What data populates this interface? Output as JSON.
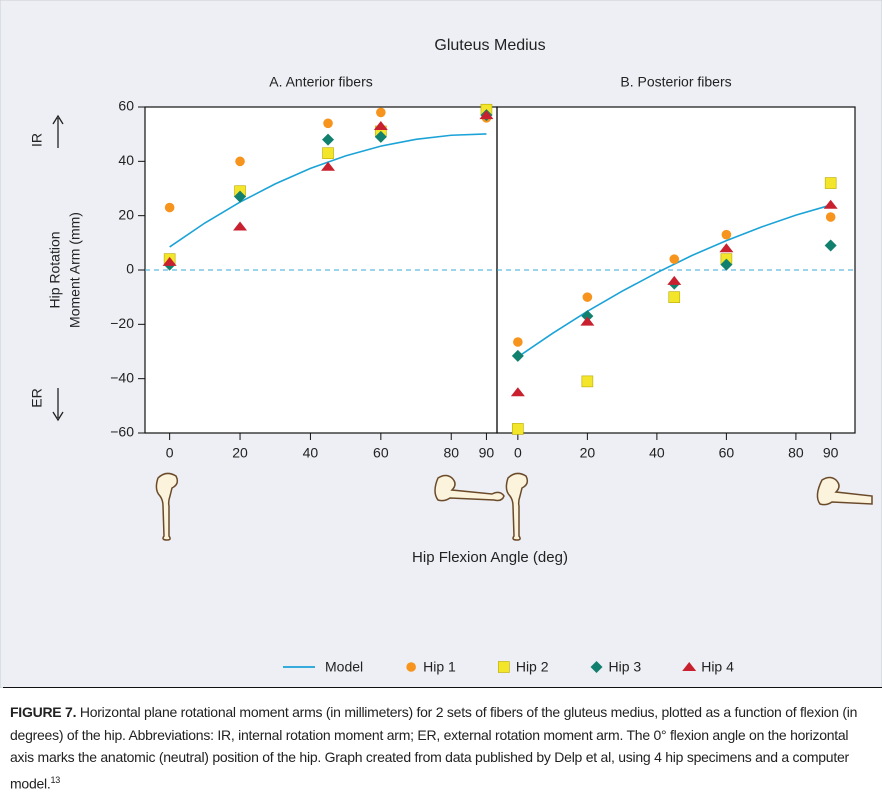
{
  "figure": {
    "title": "Gluteus Medius",
    "x_label": "Hip Flexion Angle (deg)",
    "y_label": [
      "Hip Rotation",
      "Moment Arm (mm)"
    ],
    "ir_label": "IR",
    "er_label": "ER",
    "caption": {
      "label": "FIGURE 7.",
      "text": "Horizontal plane rotational moment arms (in millimeters) for 2 sets of fibers of the gluteus medius, plotted as a function of flexion (in degrees) of the hip. Abbreviations: IR, internal rotation moment arm; ER, external rotation moment arm. The 0° flexion angle on the horizontal axis marks the anatomic (neutral) position of the hip. Graph created from data published by Delp et al, using 4 hip specimens and a computer model.",
      "ref": "13"
    }
  },
  "chart_data": [
    {
      "type": "scatter",
      "title": "A. Anterior fibers",
      "xlim": [
        -7,
        93
      ],
      "ylim": [
        -60,
        60
      ],
      "xticks": [
        0,
        20,
        40,
        60,
        80,
        90
      ],
      "yticks": [
        {
          "value": -60,
          "label": "−60"
        },
        {
          "value": -40,
          "label": "−40"
        },
        {
          "value": -20,
          "label": "−20"
        },
        0,
        20,
        40,
        60
      ],
      "zero_line": true,
      "series": [
        {
          "name": "Model",
          "color": "#1ba3d8",
          "marker": "line",
          "x": [
            0,
            10,
            20,
            30,
            40,
            50,
            60,
            70,
            80,
            90
          ],
          "values": [
            8.5,
            17.3,
            25,
            31.7,
            37.4,
            42,
            45.6,
            48.1,
            49.6,
            50.1
          ]
        },
        {
          "name": "Hip 1",
          "color": "#f7941d",
          "marker": "circle",
          "x": [
            0,
            20,
            45,
            60,
            90
          ],
          "values": [
            23,
            40,
            54,
            58,
            56
          ]
        },
        {
          "name": "Hip 2",
          "color": "#f2e52a",
          "marker": "square",
          "x": [
            0,
            20,
            45,
            60,
            90
          ],
          "values": [
            4,
            29,
            43,
            51,
            59
          ]
        },
        {
          "name": "Hip 3",
          "color": "#12806e",
          "marker": "diamond",
          "x": [
            0,
            20,
            45,
            60,
            90
          ],
          "values": [
            2,
            27,
            48,
            49,
            57
          ]
        },
        {
          "name": "Hip 4",
          "color": "#c8202f",
          "marker": "triangle",
          "x": [
            0,
            20,
            45,
            60,
            90
          ],
          "values": [
            3,
            16,
            38,
            53,
            57
          ]
        }
      ]
    },
    {
      "type": "scatter",
      "title": "B. Posterior fibers",
      "xlim": [
        -6,
        97
      ],
      "ylim": [
        -60,
        60
      ],
      "xticks": [
        0,
        20,
        40,
        60,
        80,
        90
      ],
      "zero_line": true,
      "series": [
        {
          "color": "#1ba3d8",
          "marker": "line",
          "x": [
            0,
            10,
            20,
            30,
            40,
            50,
            60,
            70,
            80,
            90
          ],
          "values": [
            -32,
            -23.3,
            -15.2,
            -7.8,
            -1,
            5.3,
            10.8,
            15.8,
            20.2,
            23.9
          ]
        },
        {
          "color": "#f7941d",
          "marker": "circle",
          "x": [
            0,
            20,
            45,
            60,
            90
          ],
          "values": [
            -26.5,
            -10,
            4,
            13,
            19.5
          ]
        },
        {
          "color": "#f2e52a",
          "marker": "square",
          "x": [
            0,
            20,
            45,
            60,
            90
          ],
          "values": [
            -58.5,
            -41,
            -10,
            4,
            32
          ]
        },
        {
          "color": "#12806e",
          "marker": "diamond",
          "x": [
            0,
            20,
            45,
            60,
            90
          ],
          "values": [
            -31.6,
            -17,
            -5,
            2,
            9
          ]
        },
        {
          "color": "#c8202f",
          "marker": "triangle",
          "x": [
            0,
            20,
            45,
            60,
            90
          ],
          "values": [
            -45,
            -19,
            -4,
            8,
            24
          ]
        }
      ]
    }
  ]
}
